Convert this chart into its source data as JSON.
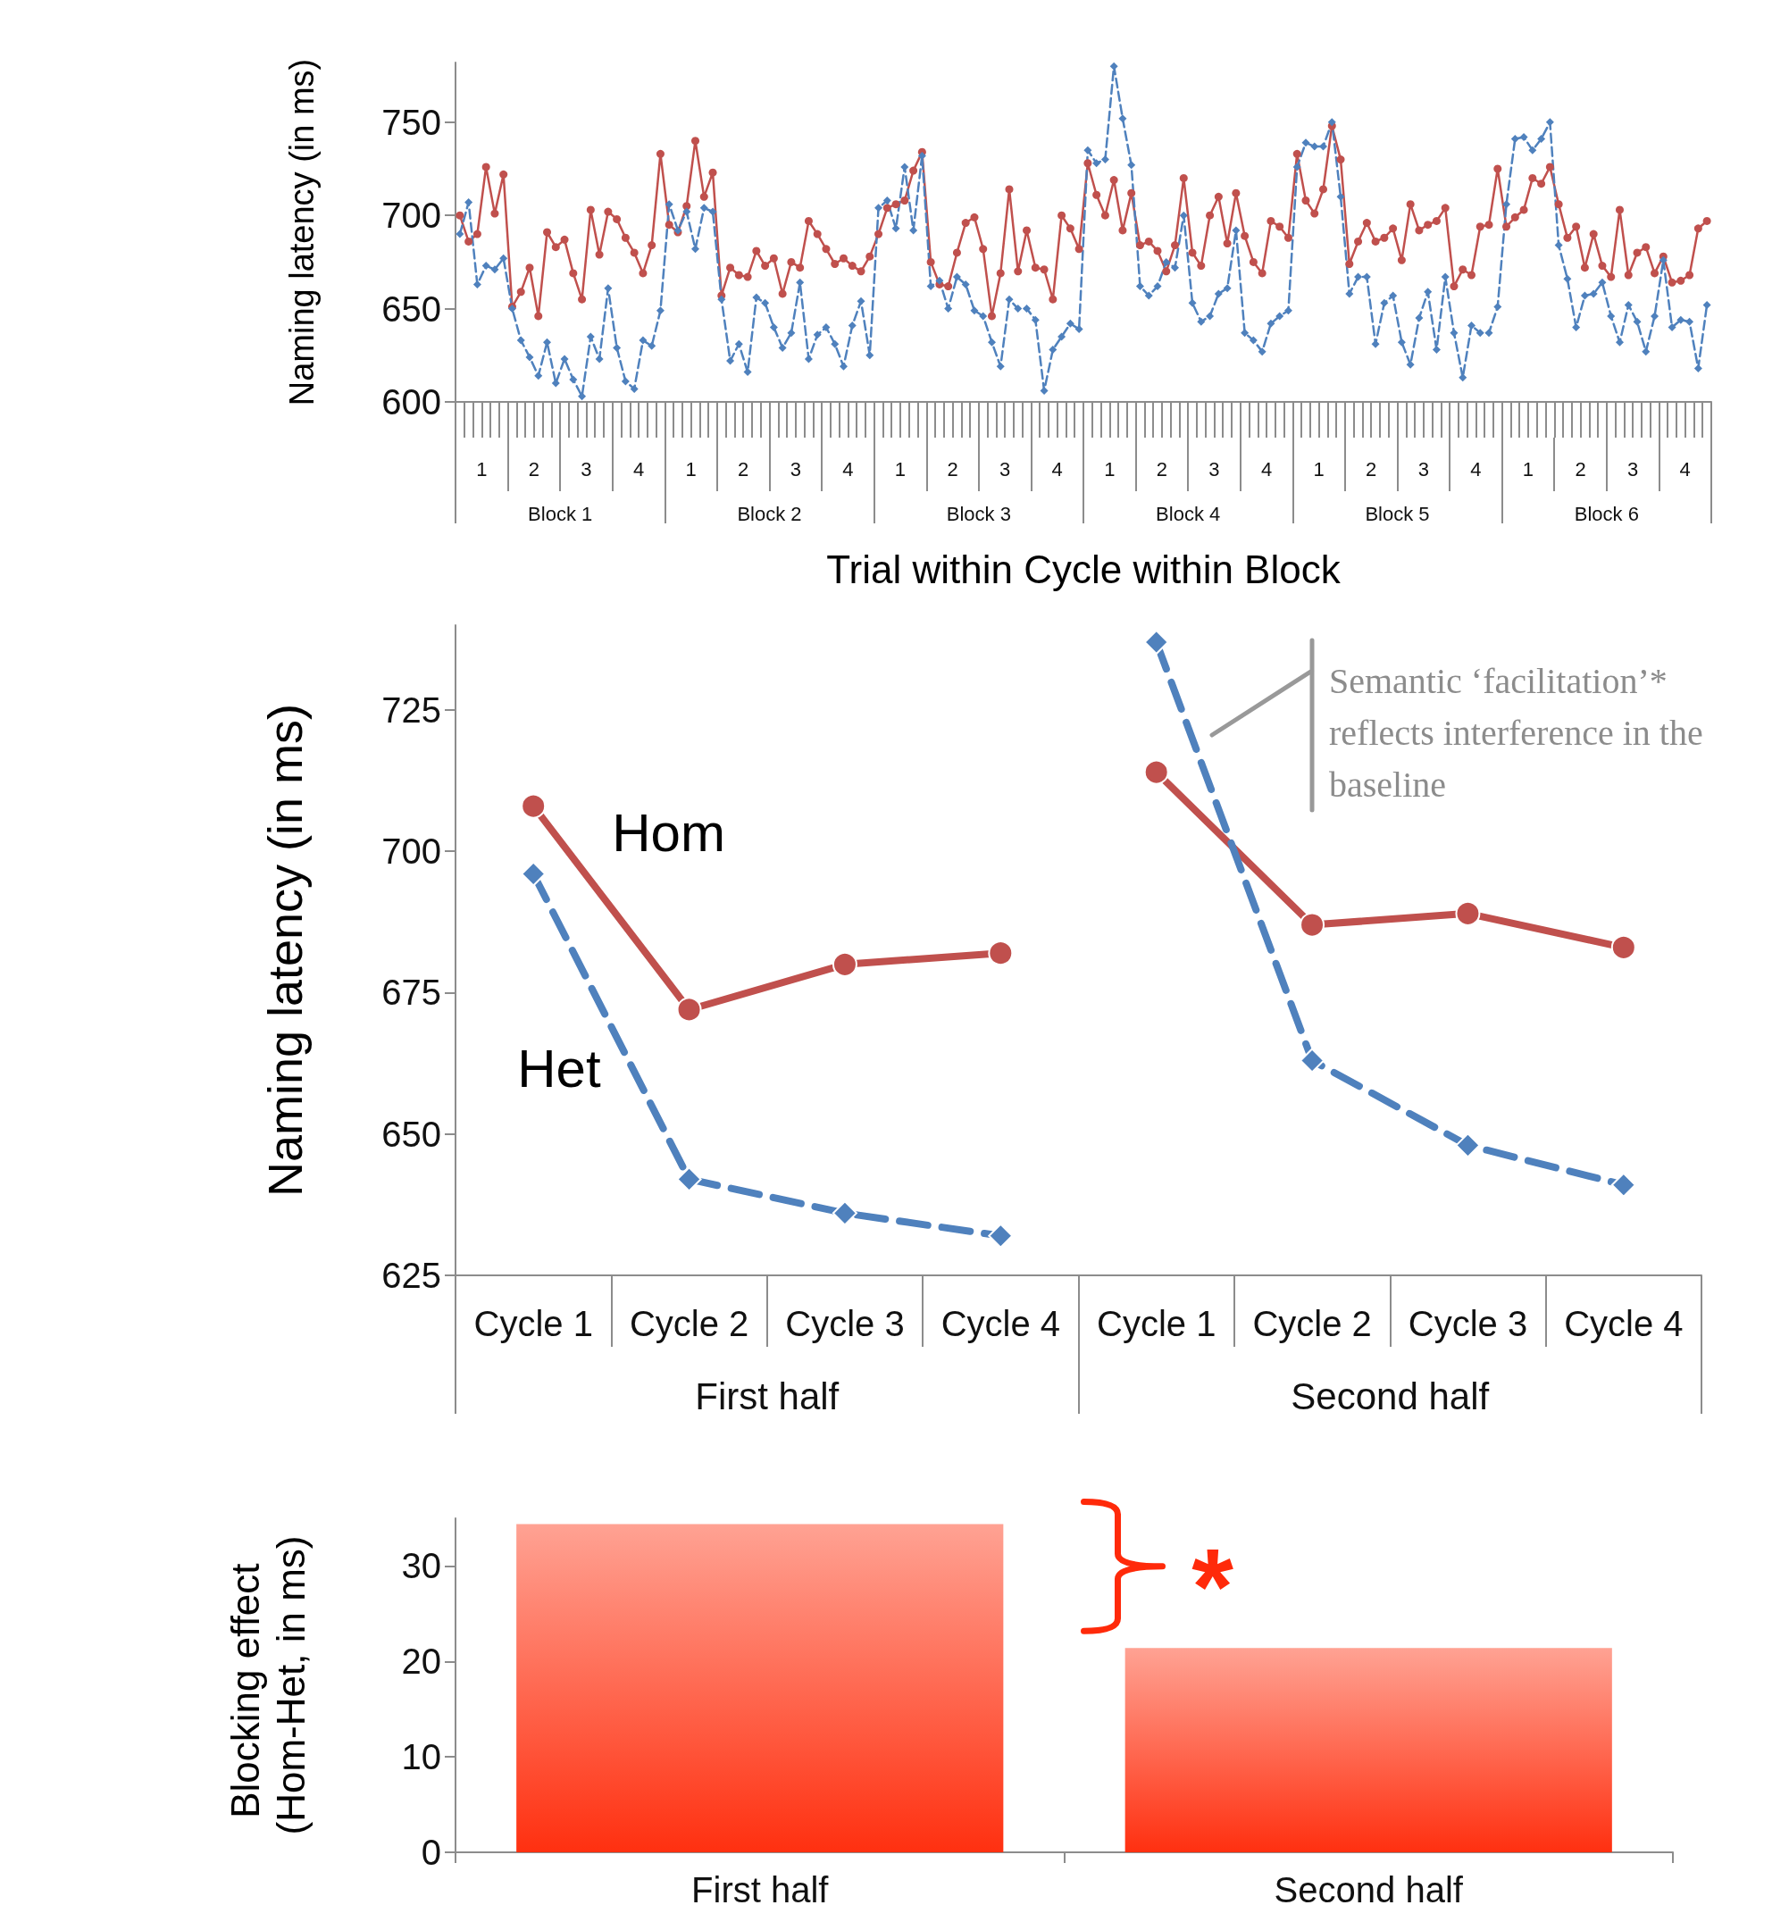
{
  "chart_data": [
    {
      "type": "line",
      "xlabel": "Trial within Cycle within Block",
      "ylabel": "Naming latency (in ms)",
      "ylim": [
        600,
        782
      ],
      "yticks": [
        600,
        650,
        700,
        750
      ],
      "categories": [
        null,
        null,
        null,
        null,
        null,
        null,
        null,
        null,
        null,
        null,
        null,
        null,
        null,
        null,
        null,
        null,
        null,
        null,
        null,
        null,
        null,
        null,
        null,
        null,
        null,
        null,
        null,
        null,
        null,
        null,
        null,
        null,
        null,
        null,
        null,
        null,
        null,
        null,
        null,
        null,
        null,
        null,
        null,
        null,
        null,
        null,
        null,
        null,
        null,
        null,
        null,
        null,
        null,
        null,
        null,
        null,
        null,
        null,
        null,
        null,
        null,
        null,
        null,
        null,
        null,
        null,
        null,
        null,
        null,
        null,
        null,
        null,
        null,
        null,
        null,
        null,
        null,
        null,
        null,
        null,
        null,
        null,
        null,
        null,
        null,
        null,
        null,
        null,
        null,
        null,
        null,
        null,
        null,
        null,
        null,
        null,
        null,
        null,
        null,
        null,
        null,
        null,
        null,
        null,
        null,
        null,
        null,
        null,
        null,
        null,
        null,
        null,
        null,
        null,
        null,
        null,
        null,
        null,
        null,
        null,
        null,
        null,
        null,
        null,
        null,
        null,
        null,
        null,
        null,
        null,
        null,
        null,
        null,
        null,
        null,
        null,
        null,
        null,
        null,
        null,
        null,
        null,
        null,
        null
      ],
      "series": [
        {
          "color": "#c0504d",
          "marker": "circle",
          "line_style": "solid",
          "values": [
            700,
            686,
            690,
            726,
            701,
            722,
            651,
            659,
            672,
            646,
            691,
            683,
            687,
            669,
            655,
            703,
            679,
            702,
            698,
            688,
            680,
            669,
            684,
            733,
            695,
            691,
            705,
            740,
            710,
            723,
            657,
            672,
            668,
            667,
            681,
            673,
            677,
            658,
            675,
            672,
            697,
            690,
            682,
            674,
            677,
            673,
            670,
            678,
            690,
            704,
            706,
            708,
            724,
            734,
            675,
            663,
            662,
            680,
            696,
            699,
            682,
            646,
            669,
            714,
            670,
            692,
            672,
            671,
            655,
            700,
            693,
            682,
            728,
            711,
            700,
            719,
            692,
            712,
            684,
            686,
            681,
            670,
            684,
            720,
            680,
            673,
            700,
            710,
            685,
            712,
            689,
            675,
            669,
            697,
            694,
            688,
            733,
            708,
            701,
            714,
            748,
            730,
            674,
            686,
            696,
            686,
            688,
            693,
            676,
            706,
            692,
            695,
            697,
            704,
            662,
            671,
            668,
            694,
            695,
            725,
            694,
            699,
            703,
            720,
            717,
            726,
            706,
            688,
            694,
            672,
            690,
            673,
            667,
            703,
            668,
            680,
            683,
            669,
            678,
            664,
            665,
            668,
            693,
            697
          ]
        },
        {
          "color": "#4f81bd",
          "marker": "diamond",
          "line_style": "dashed",
          "values": [
            690,
            707,
            663,
            673,
            671,
            677,
            650,
            633,
            624,
            614,
            632,
            610,
            623,
            612,
            603,
            635,
            623,
            661,
            629,
            611,
            607,
            633,
            630,
            649,
            706,
            692,
            702,
            682,
            704,
            702,
            655,
            622,
            631,
            616,
            656,
            653,
            640,
            629,
            637,
            664,
            623,
            636,
            640,
            631,
            619,
            641,
            654,
            625,
            704,
            708,
            693,
            726,
            692,
            732,
            662,
            665,
            650,
            667,
            663,
            649,
            646,
            632,
            619,
            655,
            650,
            650,
            644,
            606,
            628,
            635,
            642,
            639,
            735,
            728,
            730,
            780,
            752,
            727,
            662,
            657,
            662,
            675,
            672,
            700,
            653,
            643,
            646,
            658,
            661,
            692,
            637,
            633,
            627,
            642,
            646,
            649,
            726,
            739,
            737,
            737,
            750,
            710,
            658,
            667,
            667,
            631,
            653,
            657,
            632,
            620,
            645,
            659,
            628,
            667,
            637,
            613,
            641,
            637,
            637,
            651,
            706,
            741,
            742,
            735,
            741,
            750,
            684,
            666,
            640,
            657,
            658,
            664,
            646,
            632,
            652,
            643,
            627,
            646,
            676,
            640,
            644,
            643,
            618,
            652
          ]
        }
      ],
      "annotations": [
        "1",
        "2",
        "3",
        "4",
        "1",
        "2",
        "3",
        "4",
        "1",
        "2",
        "3",
        "4",
        "1",
        "2",
        "3",
        "4",
        "1",
        "2",
        "3",
        "4",
        "1",
        "2",
        "3",
        "4",
        "Block 1",
        "Block 2",
        "Block 3",
        "Block 4",
        "Block 5",
        "Block 6"
      ]
    },
    {
      "type": "line",
      "ylabel": "Naming latency (in ms)",
      "ylim": [
        625,
        740
      ],
      "yticks": [
        625,
        650,
        675,
        700,
        725
      ],
      "categories": [
        "Cycle 1",
        "Cycle 2",
        "Cycle 3",
        "Cycle 4",
        "Cycle 1",
        "Cycle 2",
        "Cycle 3",
        "Cycle 4"
      ],
      "series": [
        {
          "name": "Hom",
          "color": "#c0504d",
          "marker": "circle",
          "line_style": "solid",
          "values": [
            708,
            672,
            680,
            682,
            null,
            null,
            null,
            null
          ]
        },
        {
          "name": "Het",
          "color": "#4f81bd",
          "marker": "diamond",
          "line_style": "dashed",
          "values": [
            696,
            642,
            636,
            632,
            null,
            null,
            null,
            null
          ]
        },
        {
          "color": "#c0504d",
          "marker": "circle",
          "line_style": "solid",
          "values": [
            null,
            null,
            null,
            null,
            714,
            687,
            689,
            683
          ]
        },
        {
          "color": "#4f81bd",
          "marker": "diamond",
          "line_style": "dashed",
          "values": [
            null,
            null,
            null,
            null,
            737,
            663,
            648,
            641
          ]
        }
      ],
      "annotations": [
        "First half",
        "Second half",
        "Semantic ‘facilitation’* reflects interference in the baseline"
      ]
    },
    {
      "type": "bar",
      "ylabel": "Blocking effect (Hom-Het, in ms)",
      "categories": [
        "First half",
        "Second half"
      ],
      "values": [
        34.4,
        21.4
      ],
      "color": "#ff3010",
      "ylim": [
        0,
        35
      ],
      "yticks": [
        0,
        10,
        20,
        30
      ],
      "annotations": [
        "*"
      ]
    }
  ]
}
